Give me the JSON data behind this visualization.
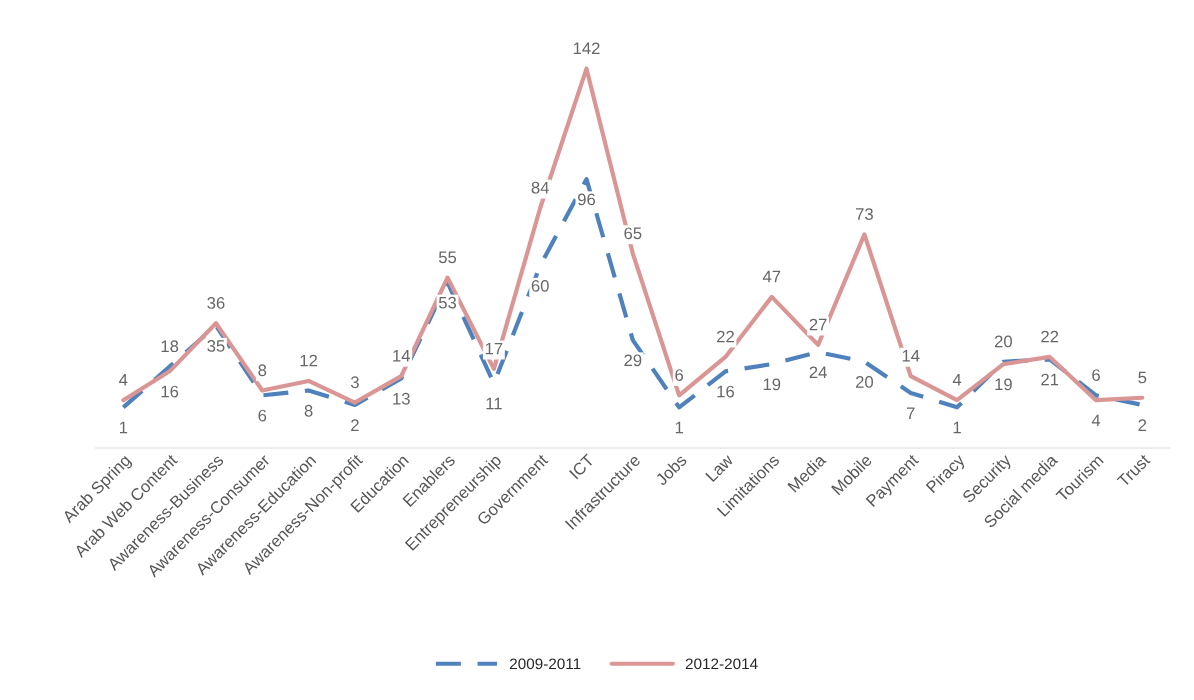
{
  "chart_data": {
    "type": "line",
    "categories": [
      "Arab Spring",
      "Arab Web Content",
      "Awareness-Business",
      "Awareness-Consumer",
      "Awareness-Education",
      "Awareness-Non-profit",
      "Education",
      "Enablers",
      "Entrepreneurship",
      "Government",
      "ICT",
      "Infrastructure",
      "Jobs",
      "Law",
      "Limitations",
      "Media",
      "Mobile",
      "Payment",
      "Piracy",
      "Security",
      "Social media",
      "Tourism",
      "Trust"
    ],
    "series": [
      {
        "name": "2009-2011",
        "color": "#4f81bd",
        "line_style": "dashed",
        "values": [
          1,
          18,
          35,
          6,
          8,
          2,
          13,
          53,
          11,
          60,
          96,
          29,
          1,
          16,
          19,
          24,
          20,
          7,
          1,
          20,
          21,
          6,
          2
        ]
      },
      {
        "name": "2012-2014",
        "color": "#d99694",
        "line_style": "solid",
        "values": [
          4,
          16,
          36,
          8,
          12,
          3,
          14,
          55,
          17,
          84,
          142,
          65,
          6,
          22,
          47,
          27,
          73,
          14,
          4,
          19,
          22,
          4,
          5
        ]
      }
    ],
    "data_labels": true,
    "legend": "bottom",
    "grid": false,
    "marker": "none"
  }
}
